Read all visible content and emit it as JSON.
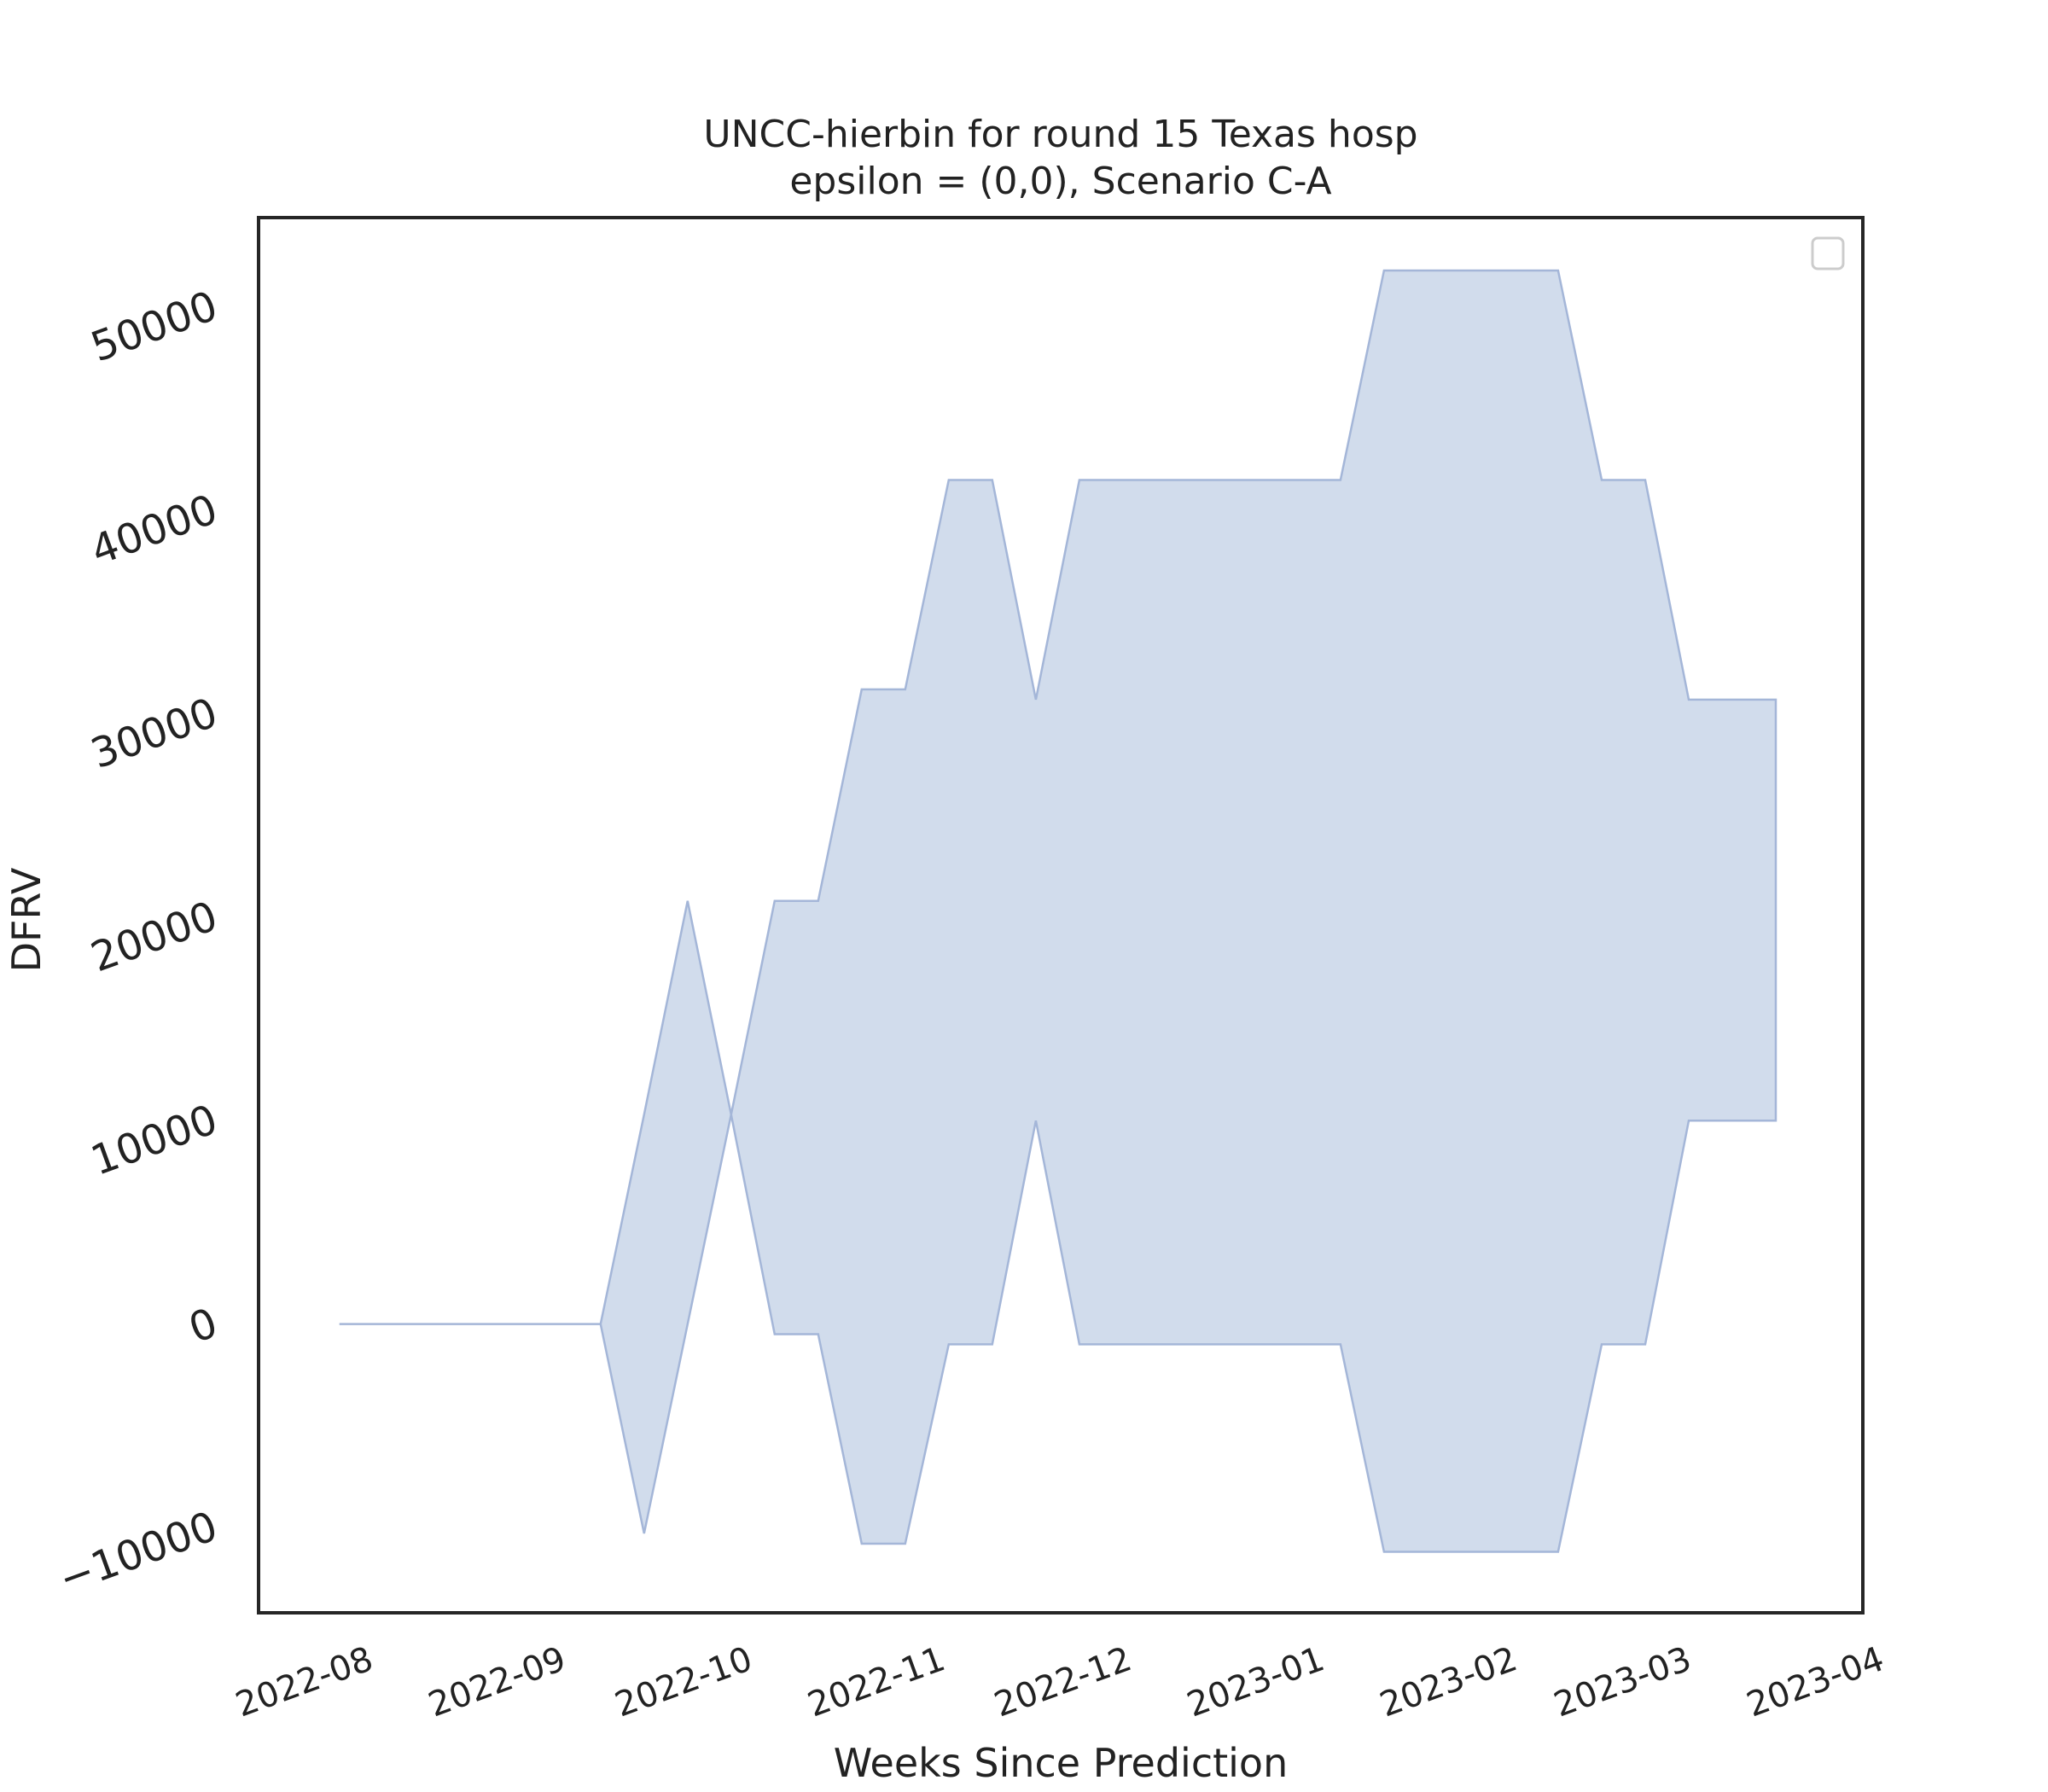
{
  "chart_data": {
    "type": "area",
    "title_lines": [
      "UNCC-hierbin for round 15 Texas hosp",
      "epsilon = (0,0), Scenario C-A"
    ],
    "xlabel": "Weeks Since Prediction",
    "ylabel": "DFRV",
    "x_tick_labels": [
      "2022-08",
      "2022-09",
      "2022-10",
      "2022-11",
      "2022-12",
      "2023-01",
      "2023-02",
      "2023-03",
      "2023-04"
    ],
    "x_tick_dates": [
      "2022-08-01",
      "2022-09-01",
      "2022-10-01",
      "2022-11-01",
      "2022-12-01",
      "2023-01-01",
      "2023-02-01",
      "2023-03-01",
      "2023-04-01"
    ],
    "xlim": [
      "2022-07-19",
      "2023-04-03"
    ],
    "y_ticks": [
      -10000,
      0,
      10000,
      20000,
      30000,
      40000,
      50000
    ],
    "y_tick_labels": [
      "−10000",
      "0",
      "10000",
      "20000",
      "30000",
      "40000",
      "50000"
    ],
    "ylim": [
      -14200,
      54400
    ],
    "grid": false,
    "legend": "top-right, empty",
    "band_color": "#b0c2de",
    "band": {
      "x": [
        "2022-08-01",
        "2022-08-08",
        "2022-08-15",
        "2022-08-22",
        "2022-08-29",
        "2022-09-05",
        "2022-09-12",
        "2022-09-19",
        "2022-09-26",
        "2022-10-03",
        "2022-10-10",
        "2022-10-17",
        "2022-10-24",
        "2022-10-31",
        "2022-11-07",
        "2022-11-14",
        "2022-11-21",
        "2022-11-28",
        "2022-12-05",
        "2022-12-12",
        "2022-12-19",
        "2022-12-26",
        "2023-01-02",
        "2023-01-09",
        "2023-01-16",
        "2023-01-23",
        "2023-01-30",
        "2023-02-06",
        "2023-02-13",
        "2023-02-20",
        "2023-02-27",
        "2023-03-06",
        "2023-03-13",
        "2023-03-20"
      ],
      "lower": [
        0,
        0,
        0,
        0,
        0,
        0,
        0,
        -10300,
        0,
        10300,
        -500,
        -500,
        -10800,
        -10800,
        -1000,
        -1000,
        10000,
        -1000,
        -1000,
        -1000,
        -1000,
        -1000,
        -1000,
        -1000,
        -11200,
        -11200,
        -11200,
        -11200,
        -11200,
        -1000,
        -1000,
        10000,
        10000,
        10000
      ],
      "upper": [
        0,
        0,
        0,
        0,
        0,
        0,
        0,
        10300,
        20800,
        10300,
        20800,
        20800,
        31200,
        31200,
        41500,
        41500,
        30700,
        41500,
        41500,
        41500,
        41500,
        41500,
        41500,
        41500,
        51800,
        51800,
        51800,
        51800,
        51800,
        41500,
        41500,
        30700,
        30700,
        30700
      ]
    }
  }
}
